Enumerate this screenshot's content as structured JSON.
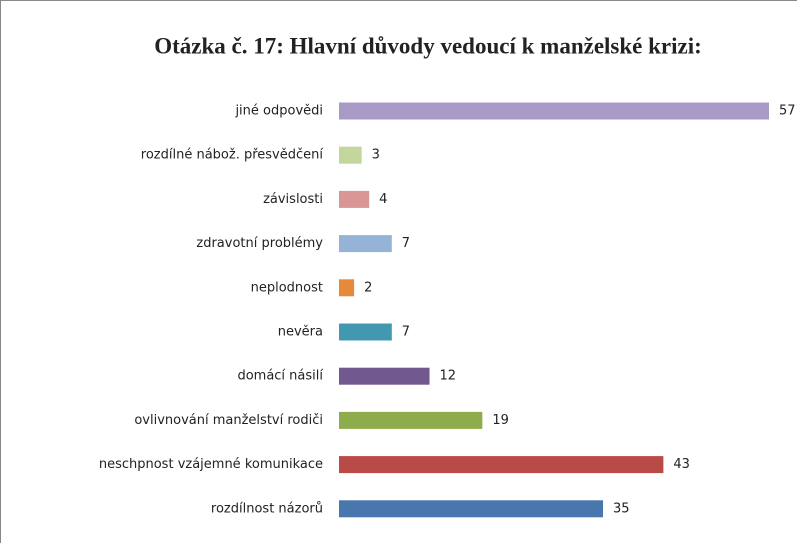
{
  "chart_data": {
    "type": "hbar",
    "title": "Otázka č. 17: Hlavní důvody vedoucí k manželské krizi:",
    "categories": [
      "jiné odpovědi",
      "rozdílné nábož. přesvědčení",
      "závislosti",
      "zdravotní problémy",
      "neplodnost",
      "nevěra",
      "domácí násilí",
      "ovlivnování manželství rodiči",
      "neschpnost vzájemné komunikace",
      "rozdílnost názorů"
    ],
    "values": [
      57,
      3,
      4,
      7,
      2,
      7,
      12,
      19,
      43,
      35
    ],
    "colors": [
      "#a99bc6",
      "#c3d69b",
      "#d99694",
      "#95b3d7",
      "#e6893a",
      "#4198af",
      "#71588f",
      "#8fac4d",
      "#b84b48",
      "#4a76ae"
    ]
  }
}
